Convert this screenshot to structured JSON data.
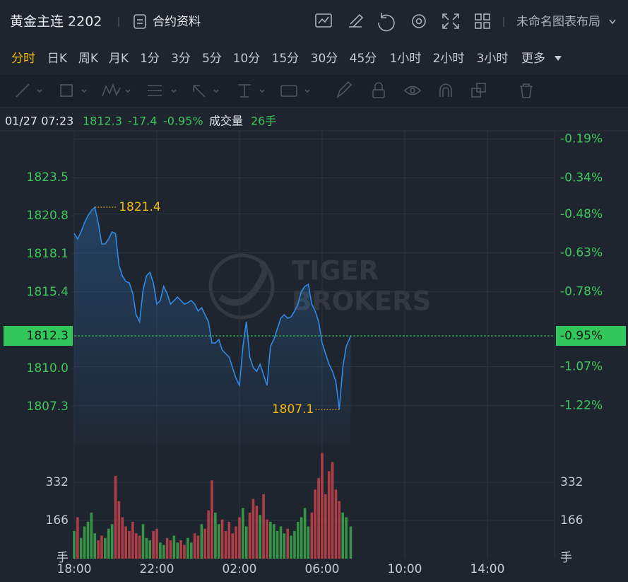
{
  "header": {
    "title": "黄金主连 2202",
    "contract_info": "合约资料",
    "layout_name": "未命名图表布局"
  },
  "periods": [
    "分时",
    "日K",
    "周K",
    "月K",
    "1分",
    "3分",
    "5分",
    "10分",
    "15分",
    "30分",
    "45分",
    "1小时",
    "2小时",
    "3小时",
    "更多"
  ],
  "active_period": 0,
  "watermark": [
    "TIGER",
    "BROKERS"
  ],
  "chart_data": {
    "type": "line",
    "time": "01/27 07:23",
    "price": 1812.3,
    "change": -17.4,
    "change_pct": {
      "value": -0.95,
      "label": "-0.95%"
    },
    "volume_label": "成交量",
    "volume_now": {
      "value": 26,
      "label": "26手"
    },
    "x": [
      "18:00",
      "18:10",
      "18:20",
      "18:30",
      "18:40",
      "18:50",
      "19:00",
      "19:10",
      "19:20",
      "19:30",
      "19:40",
      "19:50",
      "20:00",
      "20:10",
      "20:20",
      "20:30",
      "20:40",
      "20:50",
      "21:00",
      "21:10",
      "21:20",
      "21:30",
      "21:40",
      "21:50",
      "22:00",
      "22:10",
      "22:20",
      "22:30",
      "22:40",
      "22:50",
      "23:00",
      "23:10",
      "23:20",
      "23:30",
      "23:40",
      "23:50",
      "00:00",
      "00:10",
      "00:20",
      "00:30",
      "00:40",
      "00:50",
      "01:00",
      "01:10",
      "01:20",
      "01:30",
      "01:40",
      "01:50",
      "02:00",
      "02:10",
      "02:20",
      "02:30",
      "02:40",
      "02:50",
      "03:00",
      "03:10",
      "03:20",
      "03:30",
      "03:40",
      "03:50",
      "04:00",
      "04:10",
      "04:20",
      "04:30",
      "04:40",
      "04:50",
      "05:00",
      "05:10",
      "05:20",
      "05:30",
      "05:40",
      "05:50",
      "06:00",
      "06:10",
      "06:20",
      "06:30",
      "06:40",
      "06:50",
      "07:00",
      "07:10",
      "07:23"
    ],
    "values": [
      1819.55,
      1819.15,
      1819.65,
      1820.3,
      1820.8,
      1821.15,
      1821.4,
      1820.3,
      1818.8,
      1818.8,
      1819.15,
      1819.65,
      1819.55,
      1817.3,
      1816.55,
      1816.15,
      1816.05,
      1815.3,
      1813.8,
      1813.3,
      1815.55,
      1816.55,
      1816.8,
      1816.05,
      1814.55,
      1814.8,
      1815.8,
      1815.3,
      1814.55,
      1814.8,
      1815.05,
      1814.8,
      1814.55,
      1814.65,
      1814.8,
      1814.55,
      1814.05,
      1814.3,
      1813.8,
      1813.3,
      1811.8,
      1811.8,
      1812.05,
      1811.3,
      1811.05,
      1810.8,
      1810.05,
      1809.3,
      1808.8,
      1811.55,
      1813.3,
      1810.8,
      1810.05,
      1809.8,
      1810.3,
      1809.55,
      1808.8,
      1811.55,
      1812.05,
      1812.8,
      1813.55,
      1813.8,
      1813.55,
      1813.65,
      1814.05,
      1814.55,
      1815.45,
      1815.8,
      1815.95,
      1814.55,
      1814.05,
      1813.3,
      1811.8,
      1811.05,
      1810.3,
      1809.8,
      1809.05,
      1807.1,
      1810.05,
      1811.55,
      1812.3
    ],
    "color": "#2e8ae6",
    "xlim": [
      "18:00",
      "17:15"
    ],
    "xticks": [
      "18:00",
      "22:00",
      "02:00",
      "06:00",
      "10:00",
      "14:00"
    ],
    "ylim": [
      1804.6,
      1826.8
    ],
    "yticks": [
      1823.5,
      1820.8,
      1818.1,
      1815.4,
      {
        "value": 1810,
        "label": "1810.0"
      },
      1807.3
    ],
    "y2lim": [
      -1.372,
      -0.158
    ],
    "y2ticks": [
      {
        "value": -0.19,
        "label": "-0.19%"
      },
      {
        "value": -0.34,
        "label": "-0.34%"
      },
      {
        "value": -0.48,
        "label": "-0.48%"
      },
      {
        "value": -0.63,
        "label": "-0.63%"
      },
      {
        "value": -0.78,
        "label": "-0.78%"
      },
      {
        "value": -1.07,
        "label": "-1.07%"
      },
      {
        "value": -1.22,
        "label": "-1.22%"
      }
    ],
    "annotations": [
      {
        "x": "19:00",
        "value": 1821.4
      },
      {
        "x": "06:50",
        "value": 1807.1
      }
    ],
    "volume": [
      120,
      180,
      90,
      140,
      160,
      200,
      110,
      80,
      100,
      90,
      130,
      150,
      360,
      250,
      180,
      140,
      120,
      160,
      110,
      100,
      150,
      90,
      80,
      120,
      130,
      70,
      60,
      90,
      80,
      100,
      70,
      80,
      60,
      90,
      70,
      110,
      100,
      150,
      130,
      210,
      340,
      200,
      150,
      170,
      120,
      160,
      110,
      140,
      180,
      220,
      140,
      200,
      260,
      230,
      190,
      280,
      170,
      160,
      150,
      120,
      140,
      110,
      130,
      100,
      120,
      160,
      180,
      220,
      140,
      200,
      300,
      350,
      460,
      280,
      380,
      420,
      300,
      250,
      200,
      180,
      140
    ],
    "volume_ylim": [
      0,
      461
    ],
    "volume_yticks": [
      166,
      332
    ],
    "volume_unit": "手",
    "up_color": "#3fb950",
    "down_color": "#e0454f",
    "grid": true
  }
}
